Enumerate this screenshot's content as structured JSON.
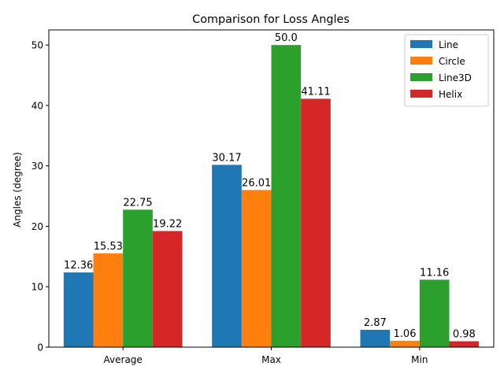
{
  "chart_data": {
    "type": "bar",
    "title": "Comparison for Loss Angles",
    "xlabel": "",
    "ylabel": "Angles (degree)",
    "categories": [
      "Average",
      "Max",
      "Min"
    ],
    "series": [
      {
        "name": "Line",
        "color": "#1f77b4",
        "values": [
          12.36,
          30.17,
          2.87
        ],
        "labels": [
          "12.36",
          "30.17",
          "2.87"
        ]
      },
      {
        "name": "Circle",
        "color": "#ff7f0e",
        "values": [
          15.53,
          26.01,
          1.06
        ],
        "labels": [
          "15.53",
          "26.01",
          "1.06"
        ]
      },
      {
        "name": "Line3D",
        "color": "#2ca02c",
        "values": [
          22.75,
          50.0,
          11.16
        ],
        "labels": [
          "22.75",
          "50.0",
          "11.16"
        ]
      },
      {
        "name": "Helix",
        "color": "#d62728",
        "values": [
          19.22,
          41.11,
          0.98
        ],
        "labels": [
          "19.22",
          "41.11",
          "0.98"
        ]
      }
    ],
    "ylim": [
      0,
      52.5
    ],
    "yticks": [
      0,
      10,
      20,
      30,
      40,
      50
    ],
    "ytick_labels": [
      "0",
      "10",
      "20",
      "30",
      "40",
      "50"
    ],
    "grid": false,
    "legend_position": "top-right"
  }
}
